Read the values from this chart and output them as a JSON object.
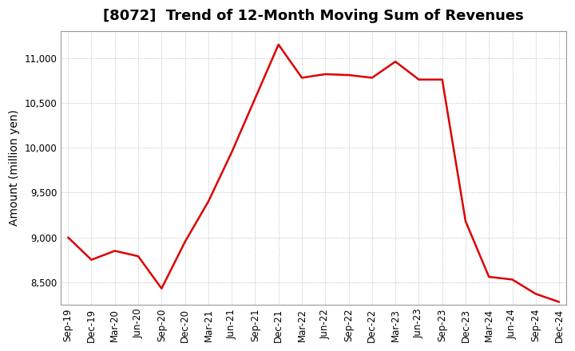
{
  "title": "[8072]  Trend of 12-Month Moving Sum of Revenues",
  "ylabel": "Amount (million yen)",
  "line_color": "#dd0000",
  "background_color": "#ffffff",
  "plot_background_color": "#ffffff",
  "grid_color": "#b0b0b0",
  "x_labels": [
    "Sep-19",
    "Dec-19",
    "Mar-20",
    "Jun-20",
    "Sep-20",
    "Dec-20",
    "Mar-21",
    "Jun-21",
    "Sep-21",
    "Dec-21",
    "Mar-22",
    "Jun-22",
    "Sep-22",
    "Dec-22",
    "Mar-23",
    "Jun-23",
    "Sep-23",
    "Dec-23",
    "Mar-24",
    "Jun-24",
    "Sep-24",
    "Dec-24"
  ],
  "values": [
    9000,
    8750,
    8850,
    8790,
    8430,
    8950,
    9400,
    9950,
    10550,
    11150,
    10780,
    10820,
    10810,
    10780,
    10960,
    10760,
    10760,
    9180,
    8560,
    8530,
    8370,
    8280
  ],
  "ylim": [
    8250,
    11300
  ],
  "yticks": [
    8500,
    9000,
    9500,
    10000,
    10500,
    11000
  ],
  "title_fontsize": 13,
  "axis_label_fontsize": 10,
  "tick_fontsize": 8.5
}
